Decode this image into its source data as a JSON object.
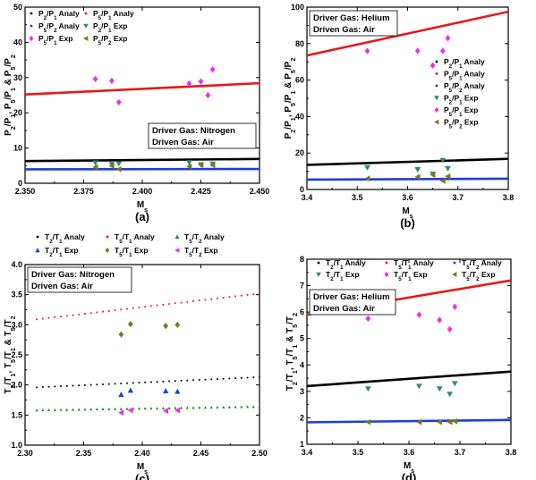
{
  "chart_data": [
    {
      "panel_label": "(a)",
      "type": "scatter",
      "xlabel": "Ms",
      "ylabel": "P2/P1, P5/P1 & P5/P2",
      "xlim": [
        2.35,
        2.45
      ],
      "ylim": [
        0,
        50
      ],
      "xticks": [
        "2.350",
        "2.375",
        "2.400",
        "2.425",
        "2.450"
      ],
      "yticks": [
        "0",
        "10",
        "20",
        "30",
        "40",
        "50"
      ],
      "annotations": [
        "Driver Gas: Nitrogen",
        "Driven Gas: Air"
      ],
      "legend": {
        "columns": 2,
        "position": "top"
      },
      "series": [
        {
          "name": "P2/P1 Analy",
          "kind": "line",
          "color": "#000000",
          "x": [
            2.35,
            2.45
          ],
          "y": [
            6.3,
            6.9
          ]
        },
        {
          "name": "P5/P1 Analy",
          "kind": "line",
          "color": "#e81818",
          "x": [
            2.35,
            2.45
          ],
          "y": [
            25.2,
            28.4
          ]
        },
        {
          "name": "P5/P2 Analy",
          "kind": "line",
          "color": "#1f3ed8",
          "x": [
            2.35,
            2.45
          ],
          "y": [
            3.95,
            4.05
          ]
        },
        {
          "name": "P2/P1 Exp",
          "kind": "marker",
          "marker": "tri-down",
          "color": "#2a8a7a",
          "x": [
            2.38,
            2.387,
            2.39,
            2.42,
            2.425,
            2.43
          ],
          "y": [
            5.8,
            5.4,
            5.6,
            5.9,
            5.3,
            5.5
          ]
        },
        {
          "name": "P5/P1 Exp",
          "kind": "marker",
          "marker": "diamond",
          "color": "#ee2cee",
          "x": [
            2.38,
            2.387,
            2.39,
            2.42,
            2.425,
            2.428,
            2.43
          ],
          "y": [
            29.6,
            29.1,
            23.0,
            28.3,
            28.9,
            25.0,
            32.3
          ]
        },
        {
          "name": "P5/P2 Exp",
          "kind": "marker",
          "marker": "tri-left",
          "color": "#7a7a1a",
          "x": [
            2.38,
            2.387,
            2.39,
            2.42,
            2.425,
            2.43
          ],
          "y": [
            4.6,
            4.9,
            4.0,
            4.8,
            5.2,
            5.1
          ]
        }
      ]
    },
    {
      "panel_label": "(b)",
      "type": "scatter",
      "xlabel": "Ms",
      "ylabel": "P2/P1, P5/P1 & P5/P2",
      "xlim": [
        3.4,
        3.8
      ],
      "ylim": [
        0,
        100
      ],
      "xticks": [
        "3.4",
        "3.5",
        "3.6",
        "3.7",
        "3.8"
      ],
      "yticks": [
        "0",
        "20",
        "40",
        "60",
        "80",
        "100"
      ],
      "annotations": [
        "Driver Gas: Helium",
        "Driven Gas: Air"
      ],
      "legend": {
        "columns": 1,
        "position": "right"
      },
      "series": [
        {
          "name": "P2/P1 Analy",
          "kind": "line",
          "color": "#000000",
          "x": [
            3.4,
            3.8
          ],
          "y": [
            13.5,
            16.8
          ]
        },
        {
          "name": "P5/P1 Analy",
          "kind": "line",
          "color": "#e81818",
          "x": [
            3.4,
            3.8
          ],
          "y": [
            73.5,
            97.5
          ]
        },
        {
          "name": "P5/P2 Analy",
          "kind": "line",
          "color": "#1f3ed8",
          "x": [
            3.4,
            3.8
          ],
          "y": [
            5.4,
            5.9
          ]
        },
        {
          "name": "P2/P1 Exp",
          "kind": "marker",
          "marker": "tri-down",
          "color": "#2a8a7a",
          "x": [
            3.52,
            3.62,
            3.65,
            3.67,
            3.68
          ],
          "y": [
            12.0,
            11.0,
            8.5,
            16.0,
            11.5
          ]
        },
        {
          "name": "P5/P1 Exp",
          "kind": "marker",
          "marker": "diamond",
          "color": "#ee2cee",
          "x": [
            3.52,
            3.62,
            3.65,
            3.67,
            3.68
          ],
          "y": [
            76.0,
            76.0,
            68.0,
            76.0,
            83.0
          ]
        },
        {
          "name": "P5/P2 Exp",
          "kind": "marker",
          "marker": "tri-left",
          "color": "#7a7a1a",
          "x": [
            3.52,
            3.62,
            3.65,
            3.67,
            3.68
          ],
          "y": [
            6.0,
            7.0,
            8.0,
            4.8,
            7.2
          ]
        }
      ]
    },
    {
      "panel_label": "(c)",
      "type": "scatter",
      "xlabel": "Ms",
      "ylabel": "T2/T1, T5/T1 & T5/T2",
      "xlim": [
        2.3,
        2.5
      ],
      "ylim": [
        1.0,
        4.0
      ],
      "xticks": [
        "2.30",
        "2.35",
        "2.40",
        "2.45",
        "2.50"
      ],
      "yticks": [
        "1.0",
        "1.5",
        "2.0",
        "2.5",
        "3.0",
        "3.5",
        "4.0"
      ],
      "annotations": [
        "Driver Gas: Nitrogen",
        "Driven Gas: Air"
      ],
      "legend": {
        "columns": 3,
        "position": "above"
      },
      "series": [
        {
          "name": "T2/T1 Analy",
          "kind": "dotted",
          "color": "#000000",
          "x": [
            2.31,
            2.5
          ],
          "y": [
            1.96,
            2.13
          ]
        },
        {
          "name": "T5/T1 Analy",
          "kind": "dotted",
          "color": "#e81818",
          "x": [
            2.31,
            2.5
          ],
          "y": [
            3.09,
            3.52
          ]
        },
        {
          "name": "T5/T2 Analy",
          "kind": "dotted-tri",
          "color": "#1f8a2a",
          "x": [
            2.31,
            2.5
          ],
          "y": [
            1.58,
            1.64
          ]
        },
        {
          "name": "T2/T1 Exp",
          "kind": "marker",
          "marker": "tri-up",
          "color": "#1f3ed8",
          "x": [
            2.382,
            2.39,
            2.42,
            2.43
          ],
          "y": [
            1.84,
            1.91,
            1.9,
            1.89
          ]
        },
        {
          "name": "T5/T1 Exp",
          "kind": "marker",
          "marker": "diamond",
          "color": "#7a7a1a",
          "x": [
            2.382,
            2.39,
            2.42,
            2.43
          ],
          "y": [
            2.84,
            3.01,
            2.98,
            3.0
          ]
        },
        {
          "name": "T5/T2 Exp",
          "kind": "marker",
          "marker": "tri-left",
          "color": "#ee2cee",
          "x": [
            2.382,
            2.39,
            2.42,
            2.43
          ],
          "y": [
            1.54,
            1.58,
            1.57,
            1.58
          ]
        }
      ]
    },
    {
      "panel_label": "(d)",
      "type": "scatter",
      "xlabel": "Ms",
      "ylabel": "T2/T1, T5/T1 & T5/T2",
      "xlim": [
        3.4,
        3.8
      ],
      "ylim": [
        1,
        8
      ],
      "xticks": [
        "3.4",
        "3.5",
        "3.6",
        "3.7",
        "3.8"
      ],
      "yticks": [
        "1",
        "2",
        "3",
        "4",
        "5",
        "6",
        "7",
        "8"
      ],
      "annotations": [
        "Driver Gas: Helium",
        "Driven Gas: Air"
      ],
      "legend": {
        "columns": 3,
        "position": "top"
      },
      "series": [
        {
          "name": "T2/T1 Analy",
          "kind": "line",
          "color": "#000000",
          "x": [
            3.4,
            3.8
          ],
          "y": [
            3.2,
            3.75
          ]
        },
        {
          "name": "T5/T1 Analy",
          "kind": "line",
          "color": "#e81818",
          "x": [
            3.4,
            3.8
          ],
          "y": [
            5.9,
            7.2
          ]
        },
        {
          "name": "T5/T2 Analy",
          "kind": "line",
          "color": "#1f3ed8",
          "x": [
            3.4,
            3.8
          ],
          "y": [
            1.83,
            1.92
          ]
        },
        {
          "name": "T2/T1 Exp",
          "kind": "marker",
          "marker": "tri-down",
          "color": "#2a8a7a",
          "x": [
            3.52,
            3.62,
            3.66,
            3.68,
            3.69
          ],
          "y": [
            3.1,
            3.2,
            3.1,
            2.9,
            3.3
          ]
        },
        {
          "name": "T5/T1 Exp",
          "kind": "marker",
          "marker": "diamond",
          "color": "#ee2cee",
          "x": [
            3.52,
            3.62,
            3.66,
            3.68,
            3.69
          ],
          "y": [
            5.75,
            5.9,
            5.7,
            5.35,
            6.2
          ]
        },
        {
          "name": "T5/T2 Exp",
          "kind": "marker",
          "marker": "tri-left",
          "color": "#7a7a1a",
          "x": [
            3.52,
            3.62,
            3.66,
            3.68,
            3.69
          ],
          "y": [
            1.84,
            1.84,
            1.84,
            1.84,
            1.87
          ]
        }
      ]
    }
  ]
}
